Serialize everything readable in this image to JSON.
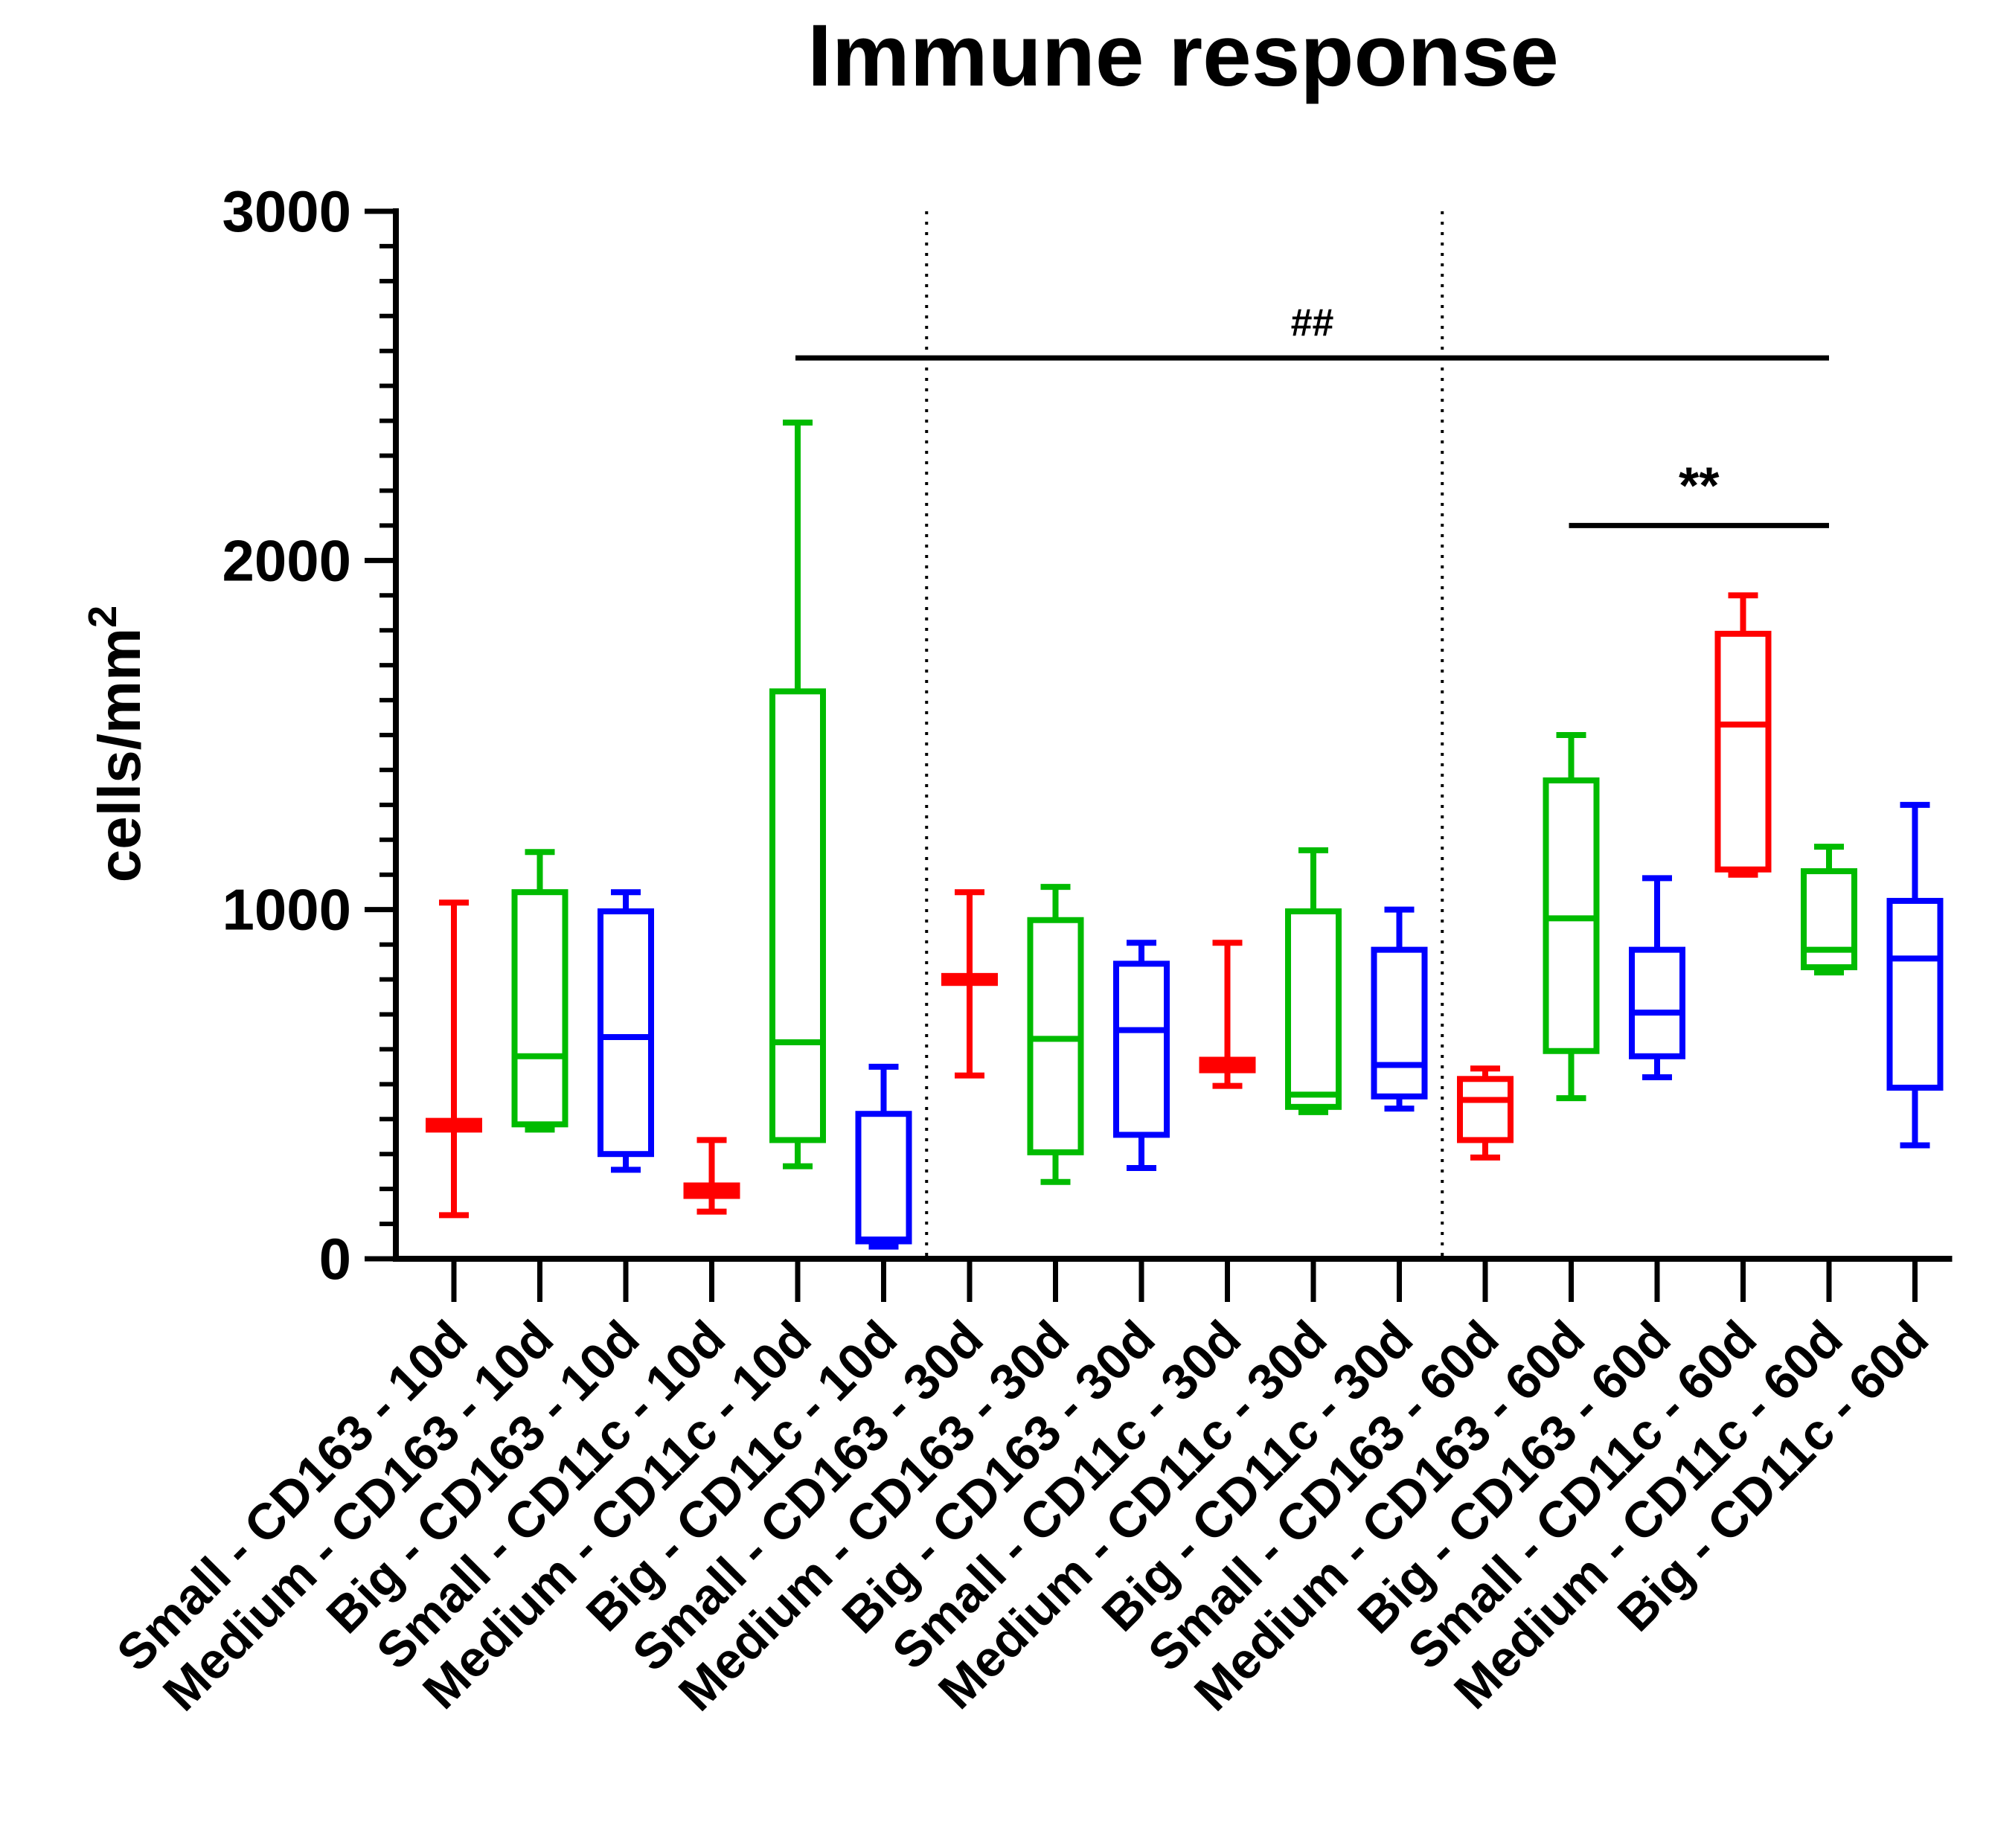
{
  "chart_data": {
    "type": "box",
    "title": "Immune response",
    "ylabel_base": "cells/mm",
    "ylabel_sup": "2",
    "xlabel": "",
    "ylim": [
      0,
      3000
    ],
    "yticks": [
      0,
      1000,
      2000,
      3000
    ],
    "yticks_minor_step": 100,
    "categories": [
      "Small - CD163 - 10d",
      "Medium - CD163 - 10d",
      "Big - CD163 - 10d",
      "Small - CD11c - 10d",
      "Medium - CD11c - 10d",
      "Big - CD11c - 10d",
      "Small - CD163 - 30d",
      "Medium - CD163 - 30d",
      "Big - CD163 - 30d",
      "Small - CD11c - 30d",
      "Medium - CD11c - 30d",
      "Big - CD11c - 30d",
      "Small - CD163 - 60d",
      "Medium - CD163 - 60d",
      "Big - CD163 - 60d",
      "Small - CD11c - 60d",
      "Medium - CD11c - 60d",
      "Big - CD11c - 60d"
    ],
    "colors": {
      "Small": "#ff0000",
      "Medium": "#00bb00",
      "Big": "#0000ff"
    },
    "boxes": [
      {
        "min": 125,
        "q1": 370,
        "median": 385,
        "q3": 395,
        "max": 1020,
        "group": "Small"
      },
      {
        "min": 370,
        "q1": 385,
        "median": 580,
        "q3": 1050,
        "max": 1165,
        "group": "Medium"
      },
      {
        "min": 255,
        "q1": 300,
        "median": 635,
        "q3": 995,
        "max": 1050,
        "group": "Big"
      },
      {
        "min": 135,
        "q1": 180,
        "median": 195,
        "q3": 210,
        "max": 340,
        "group": "Small"
      },
      {
        "min": 265,
        "q1": 340,
        "median": 620,
        "q3": 1625,
        "max": 2395,
        "group": "Medium"
      },
      {
        "min": 35,
        "q1": 50,
        "median": 55,
        "q3": 415,
        "max": 550,
        "group": "Big"
      },
      {
        "min": 525,
        "q1": 790,
        "median": 800,
        "q3": 810,
        "max": 1050,
        "group": "Small"
      },
      {
        "min": 220,
        "q1": 305,
        "median": 630,
        "q3": 970,
        "max": 1065,
        "group": "Medium"
      },
      {
        "min": 260,
        "q1": 355,
        "median": 655,
        "q3": 845,
        "max": 905,
        "group": "Big"
      },
      {
        "min": 495,
        "q1": 540,
        "median": 555,
        "q3": 570,
        "max": 905,
        "group": "Small"
      },
      {
        "min": 420,
        "q1": 435,
        "median": 470,
        "q3": 995,
        "max": 1170,
        "group": "Medium"
      },
      {
        "min": 430,
        "q1": 465,
        "median": 555,
        "q3": 885,
        "max": 1000,
        "group": "Big"
      },
      {
        "min": 290,
        "q1": 340,
        "median": 455,
        "q3": 515,
        "max": 545,
        "group": "Small"
      },
      {
        "min": 460,
        "q1": 595,
        "median": 975,
        "q3": 1370,
        "max": 1500,
        "group": "Medium"
      },
      {
        "min": 520,
        "q1": 580,
        "median": 705,
        "q3": 885,
        "max": 1090,
        "group": "Big"
      },
      {
        "min": 1100,
        "q1": 1115,
        "median": 1530,
        "q3": 1790,
        "max": 1900,
        "group": "Small"
      },
      {
        "min": 820,
        "q1": 835,
        "median": 885,
        "q3": 1110,
        "max": 1180,
        "group": "Medium"
      },
      {
        "min": 325,
        "q1": 490,
        "median": 860,
        "q3": 1025,
        "max": 1300,
        "group": "Big"
      }
    ],
    "separators_after": [
      6,
      12
    ],
    "annotations": [
      {
        "label": "##",
        "from": 4,
        "to": 16,
        "y": 2580
      },
      {
        "label": "**",
        "from": 13,
        "to": 16,
        "y": 2100
      }
    ]
  }
}
